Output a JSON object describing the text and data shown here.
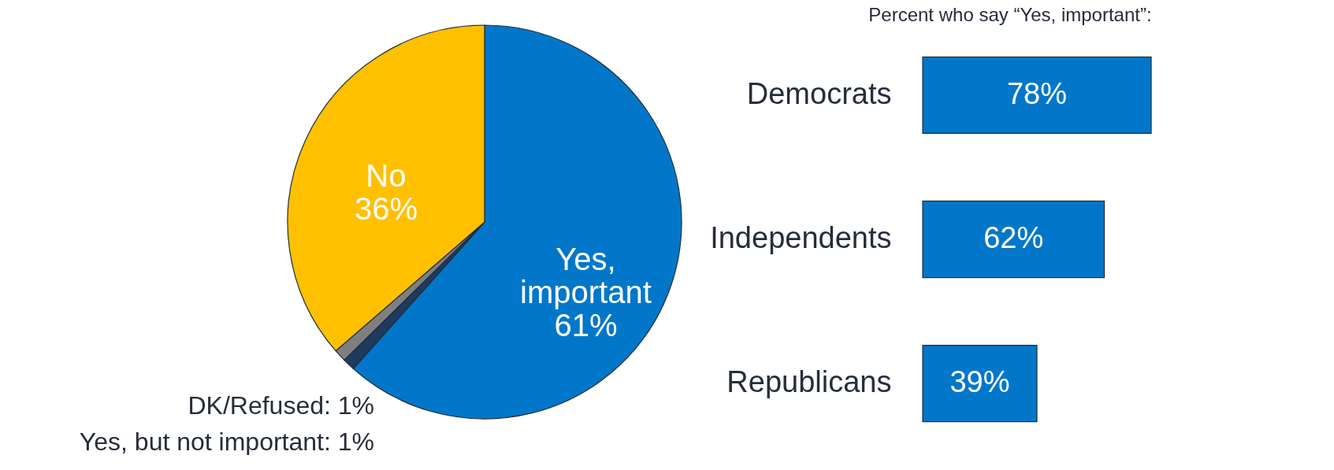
{
  "chart_data": [
    {
      "type": "pie",
      "categories": [
        "Yes, important",
        "Yes, but not important",
        "DK/Refused",
        "No"
      ],
      "values": [
        61,
        1,
        1,
        36
      ],
      "value_labels": [
        "61%",
        "1%",
        "1%",
        "36%"
      ],
      "colors": [
        "#0277c9",
        "#1f3a5f",
        "#7f7f7f",
        "#ffc000"
      ]
    },
    {
      "type": "bar",
      "orientation": "horizontal",
      "title": "Percent who say “Yes, important”:",
      "categories": [
        "Democrats",
        "Independents",
        "Republicans"
      ],
      "values": [
        78,
        62,
        39
      ],
      "value_labels": [
        "78%",
        "62%",
        "39%"
      ],
      "color": "#0277c9"
    }
  ]
}
